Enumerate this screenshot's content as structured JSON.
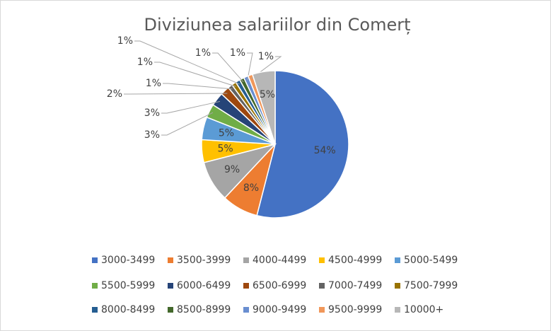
{
  "chart_data": {
    "type": "pie",
    "title": "Diviziunea salariilor din Comerț",
    "categories": [
      "3000-3499",
      "3500-3999",
      "4000-4499",
      "4500-4999",
      "5000-5499",
      "5500-5999",
      "6000-6499",
      "6500-6999",
      "7000-7499",
      "7500-7999",
      "8000-8499",
      "8500-8999",
      "9000-9499",
      "9500-9999",
      "10000+"
    ],
    "values": [
      54,
      8,
      9,
      5,
      5,
      3,
      3,
      2,
      1,
      1,
      1,
      1,
      1,
      1,
      5
    ],
    "value_labels": [
      "54%",
      "8%",
      "9%",
      "5%",
      "5%",
      "3%",
      "3%",
      "2%",
      "1%",
      "1%",
      "1%",
      "1%",
      "1%",
      "1%",
      "5%"
    ],
    "colors": [
      "#4472c4",
      "#ed7d31",
      "#a5a5a5",
      "#ffc000",
      "#5b9bd5",
      "#70ad47",
      "#264478",
      "#9e480e",
      "#636363",
      "#997300",
      "#255e91",
      "#43682b",
      "#698ed0",
      "#f1975a",
      "#b7b7b7"
    ],
    "legend": "bottom"
  }
}
